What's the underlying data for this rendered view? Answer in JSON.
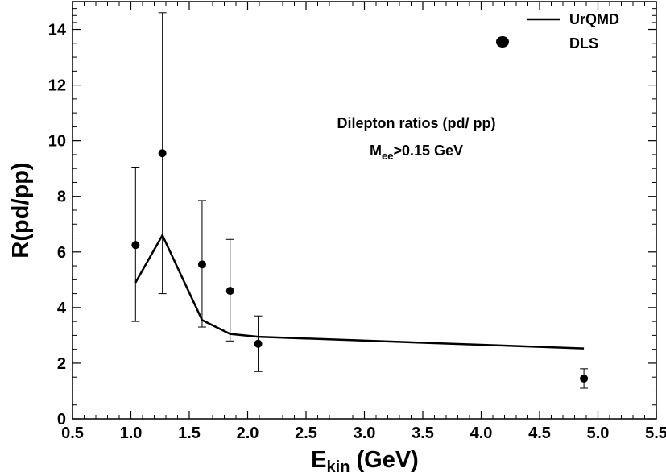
{
  "chart_data": {
    "type": "scatter",
    "xlabel": {
      "main": "E",
      "sub": "kin",
      "rest": " (GeV)"
    },
    "ylabel": "R(pd/pp)",
    "xlim": [
      0.5,
      5.5
    ],
    "ylim": [
      0,
      15
    ],
    "xticks": [
      0.5,
      1.0,
      1.5,
      2.0,
      2.5,
      3.0,
      3.5,
      4.0,
      4.5,
      5.0,
      5.5
    ],
    "xtick_labels": [
      "0.5",
      "1.0",
      "1.5",
      "2.0",
      "2.5",
      "3.0",
      "3.5",
      "4.0",
      "4.5",
      "5.0",
      "5.5"
    ],
    "yticks": [
      0,
      2,
      4,
      6,
      8,
      10,
      12,
      14
    ],
    "ytick_labels": [
      "0",
      "2",
      "4",
      "6",
      "8",
      "10",
      "12",
      "14"
    ],
    "grid": false,
    "legend_position": "top-right",
    "series": [
      {
        "name": "UrQMD",
        "kind": "line",
        "color": "#000000",
        "x": [
          1.04,
          1.27,
          1.61,
          1.85,
          2.09,
          4.88
        ],
        "y": [
          4.9,
          6.6,
          3.55,
          3.05,
          2.95,
          2.53
        ]
      },
      {
        "name": "DLS",
        "kind": "scatter-errorbar",
        "color": "#000000",
        "x": [
          1.04,
          1.27,
          1.61,
          1.85,
          2.09,
          4.88
        ],
        "y": [
          6.25,
          9.55,
          5.55,
          4.6,
          2.7,
          1.45
        ],
        "yerr_low": [
          3.5,
          4.5,
          3.3,
          2.8,
          1.7,
          1.1
        ],
        "yerr_high": [
          9.05,
          14.6,
          7.85,
          6.45,
          3.7,
          1.8
        ]
      }
    ],
    "annotations": {
      "line1": "Dilepton ratios (pd/ pp)",
      "line2": {
        "main": "M",
        "sub": "ee",
        "rest": ">0.15 GeV"
      }
    }
  }
}
